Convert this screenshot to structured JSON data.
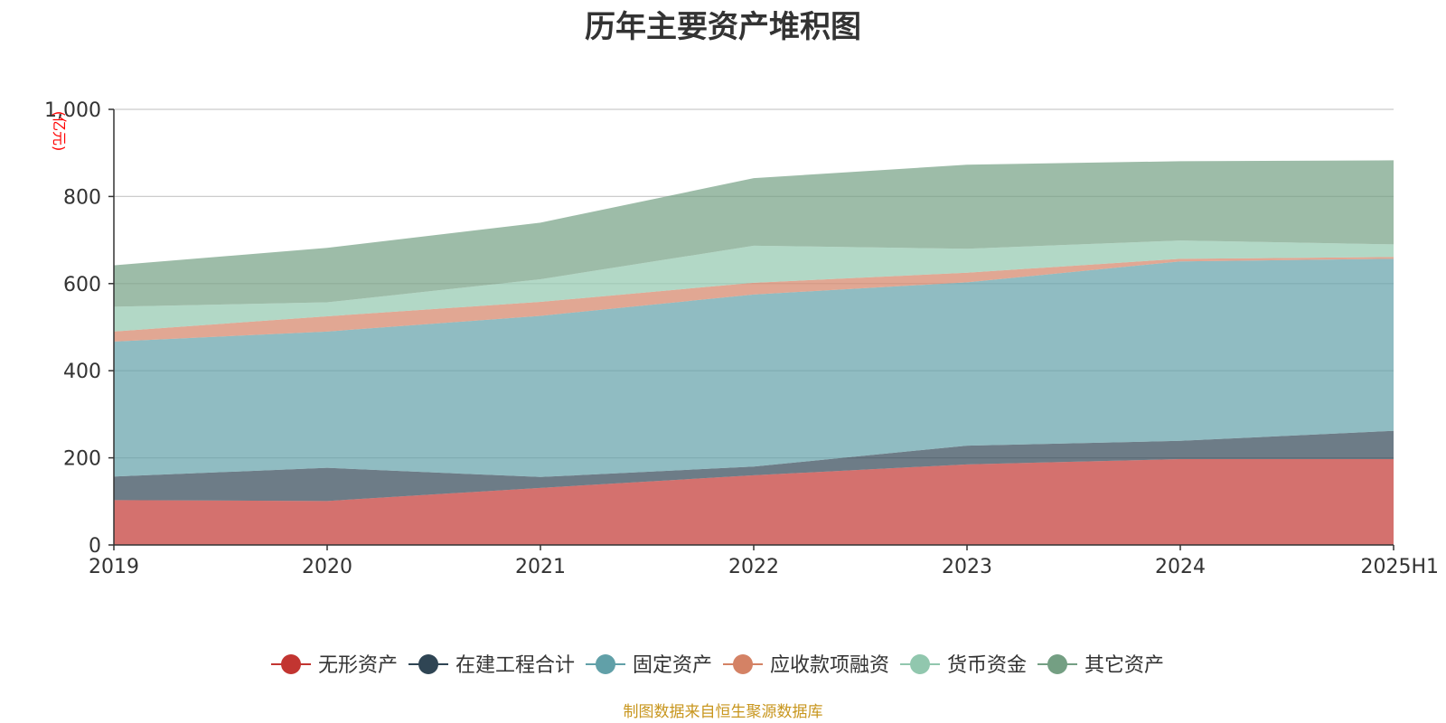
{
  "chart_data": {
    "type": "area",
    "stacked": true,
    "title": "历年主要资产堆积图",
    "ylabel": "(亿元)",
    "xlabel": "",
    "x": [
      "2019",
      "2020",
      "2021",
      "2022",
      "2023",
      "2024",
      "2025H1"
    ],
    "ylim": [
      0,
      1000
    ],
    "yticks": [
      0,
      200,
      400,
      600,
      800,
      1000
    ],
    "ytick_labels": [
      "0",
      "200",
      "400",
      "600",
      "800",
      "1,000"
    ],
    "grid": true,
    "legend_position": "bottom",
    "series": [
      {
        "name": "无形资产",
        "color": "#c23531",
        "values": [
          103,
          101,
          131,
          160,
          185,
          197,
          197
        ]
      },
      {
        "name": "在建工程合计",
        "color": "#2f4554",
        "values": [
          54,
          76,
          25,
          20,
          43,
          42,
          65
        ]
      },
      {
        "name": "固定资产",
        "color": "#61a0a8",
        "values": [
          310,
          313,
          370,
          395,
          375,
          412,
          395
        ]
      },
      {
        "name": "应收款项融资",
        "color": "#d48265",
        "values": [
          23,
          35,
          32,
          27,
          22,
          6,
          4
        ]
      },
      {
        "name": "货币资金",
        "color": "#91c7ae",
        "values": [
          57,
          32,
          52,
          85,
          55,
          42,
          29
        ]
      },
      {
        "name": "其它资产",
        "color": "#749f83",
        "values": [
          95,
          125,
          130,
          155,
          193,
          182,
          193
        ]
      }
    ]
  },
  "source_note": "制图数据来自恒生聚源数据库"
}
